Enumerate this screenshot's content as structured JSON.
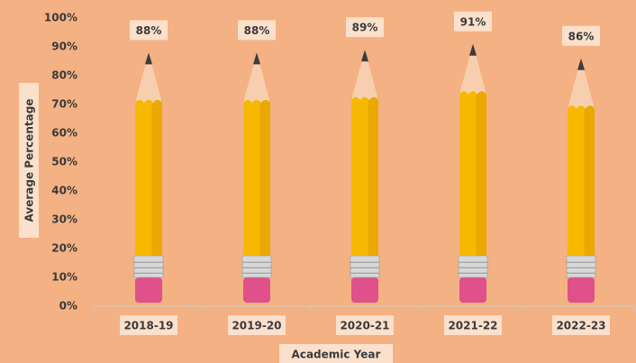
{
  "chart_data": {
    "type": "pencil-bar",
    "x_label": "Academic Year",
    "y_label": "Average Percentage",
    "categories": [
      "2018-19",
      "2019-20",
      "2020-21",
      "2021-22",
      "2022-23"
    ],
    "values": [
      88,
      88,
      89,
      91,
      86
    ],
    "value_labels": [
      "88%",
      "88%",
      "89%",
      "91%",
      "86%"
    ],
    "color": "#f6b800",
    "ylim": [
      0,
      100
    ],
    "yticks": [
      {
        "value": 0,
        "label": "0%"
      },
      {
        "value": 10,
        "label": "10%"
      },
      {
        "value": 20,
        "label": "20%"
      },
      {
        "value": 30,
        "label": "30%"
      },
      {
        "value": 40,
        "label": "40%"
      },
      {
        "value": 50,
        "label": "50%"
      },
      {
        "value": 60,
        "label": "60%"
      },
      {
        "value": 70,
        "label": "70%"
      },
      {
        "value": 80,
        "label": "80%"
      },
      {
        "value": 90,
        "label": "90%"
      },
      {
        "value": 100,
        "label": "100%"
      }
    ],
    "grid": false
  }
}
